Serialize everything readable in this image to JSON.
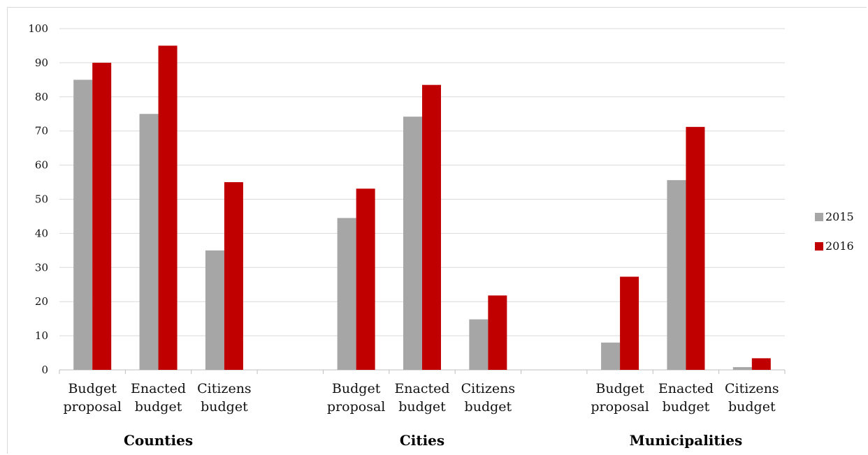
{
  "chart_data": {
    "type": "bar",
    "groups": [
      {
        "name": "Counties",
        "categories": [
          "Budget proposal",
          "Enacted budget",
          "Citizens budget"
        ]
      },
      {
        "name": "Cities",
        "categories": [
          "Budget proposal",
          "Enacted budget",
          "Citizens budget"
        ]
      },
      {
        "name": "Municipalities",
        "categories": [
          "Budget proposal",
          "Enacted budget",
          "Citizens budget"
        ]
      }
    ],
    "category_labels": [
      [
        "Budget",
        "proposal"
      ],
      [
        "Enacted",
        "budget"
      ],
      [
        "Citizens",
        "budget"
      ]
    ],
    "series": [
      {
        "name": "2015",
        "color": "#a6a6a6",
        "values": [
          85,
          75,
          35,
          null,
          44.5,
          74.2,
          14.8,
          null,
          8,
          55.6,
          0.8
        ]
      },
      {
        "name": "2016",
        "color": "#c00000",
        "values": [
          90,
          95,
          55,
          null,
          53.1,
          83.5,
          21.8,
          null,
          27.3,
          71.2,
          3.4
        ]
      }
    ],
    "ylim": [
      0,
      100
    ],
    "yticks": [
      0,
      10,
      20,
      30,
      40,
      50,
      60,
      70,
      80,
      90,
      100
    ],
    "ytick_labels": [
      "0",
      "10",
      "20",
      "30",
      "40",
      "50",
      "60",
      "70",
      "80",
      "90",
      "100"
    ],
    "grid": true,
    "legend_position": "right",
    "title": "",
    "xlabel": "",
    "ylabel": ""
  }
}
